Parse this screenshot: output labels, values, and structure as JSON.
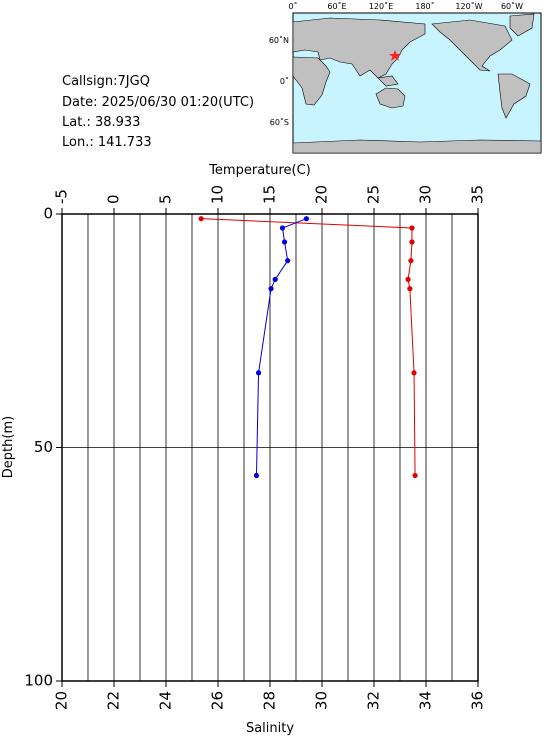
{
  "station": {
    "callsign": "Callsign:7JGQ",
    "date": "Date:  2025/06/30 01:20(UTC)",
    "lat": "Lat.:  38.933",
    "lon": "Lon.:  141.733"
  },
  "map": {
    "top_labels": [
      "0˚",
      "60˚E",
      "120˚E",
      "180˚",
      "120˚W",
      "60˚W"
    ],
    "left_labels": [
      "60˚N",
      "0˚",
      "60˚S"
    ]
  },
  "chart_data": {
    "type": "line",
    "x2_label": "Temperature(C)",
    "x_label": "Salinity",
    "y_label": "Depth(m)",
    "y": [
      1,
      3,
      6,
      10,
      14,
      16,
      34,
      56
    ],
    "series": [
      {
        "color": "#e00000",
        "axis": "x",
        "values": [
          25.35,
          33.46,
          33.46,
          33.42,
          33.31,
          33.38,
          33.54,
          33.58
        ]
      },
      {
        "color": "#0000e0",
        "axis": "x2",
        "values": [
          18.5,
          16.2,
          16.4,
          16.7,
          15.5,
          15.1,
          13.9,
          13.7
        ]
      }
    ],
    "xlim": [
      20,
      36
    ],
    "xticks": [
      20,
      22,
      24,
      26,
      28,
      30,
      32,
      34,
      36
    ],
    "x2lim": [
      -5,
      35
    ],
    "x2ticks": [
      -5,
      0,
      5,
      10,
      15,
      20,
      25,
      30,
      35
    ],
    "ylim": [
      0,
      100
    ],
    "yticks": [
      0,
      50,
      100
    ],
    "y_inverted": true,
    "xgrid": [
      21,
      22,
      23,
      24,
      25,
      26,
      27,
      28,
      29,
      30,
      31,
      32,
      33,
      34,
      35
    ],
    "ygrid": [
      50
    ]
  }
}
